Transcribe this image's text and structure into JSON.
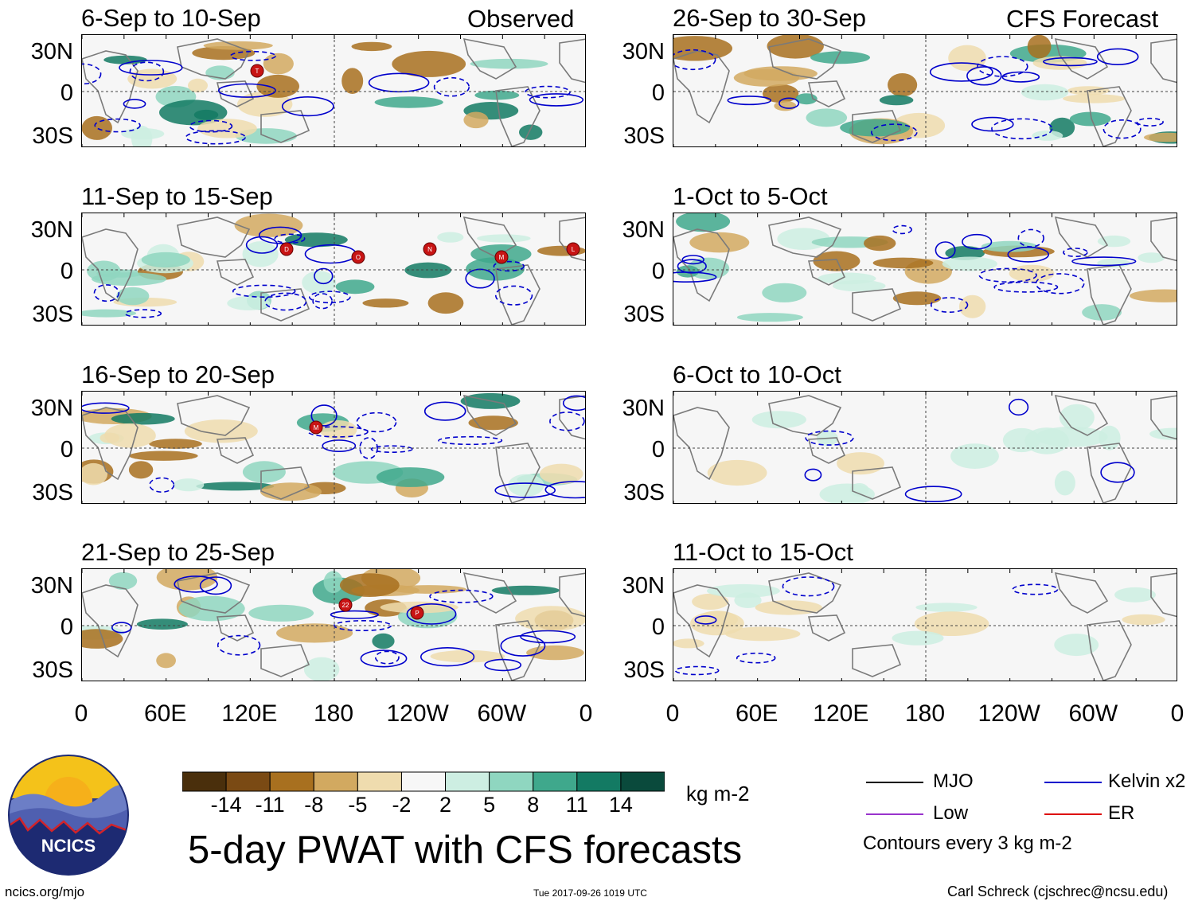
{
  "observed_label": "Observed",
  "forecast_label": "CFS Forecast",
  "panels": [
    {
      "title": "6-Sep to 10-Sep",
      "storms": [
        "T"
      ]
    },
    {
      "title": "11-Sep to 15-Sep",
      "storms": [
        "D",
        "O",
        "N",
        "M",
        "L"
      ]
    },
    {
      "title": "16-Sep to 20-Sep",
      "storms": [
        "M"
      ]
    },
    {
      "title": "21-Sep to 25-Sep",
      "storms": [
        "22",
        "P"
      ]
    },
    {
      "title": "26-Sep to 30-Sep",
      "storms": []
    },
    {
      "title": "1-Oct to 5-Oct",
      "storms": []
    },
    {
      "title": "6-Oct to 10-Oct",
      "storms": []
    },
    {
      "title": "11-Oct to 15-Oct",
      "storms": []
    }
  ],
  "lat_labels": [
    "30N",
    "0",
    "30S"
  ],
  "lon_labels": [
    "0",
    "60E",
    "120E",
    "180",
    "120W",
    "60W",
    "0"
  ],
  "colorbar": {
    "labels": [
      "-14",
      "-11",
      "-8",
      "-5",
      "-2",
      "2",
      "5",
      "8",
      "11",
      "14"
    ],
    "colors": [
      "#4a2f0c",
      "#7a4a14",
      "#a8701f",
      "#d2a960",
      "#efdcae",
      "#f7f7f7",
      "#cdeee2",
      "#8fd6c0",
      "#3fa88c",
      "#137a63",
      "#0a4a3c"
    ],
    "units": "kg m-2"
  },
  "legend": {
    "items": [
      {
        "label": "MJO",
        "color": "#000000"
      },
      {
        "label": "Kelvin x2",
        "color": "#0000cc"
      },
      {
        "label": "Low",
        "color": "#9933cc"
      },
      {
        "label": "ER",
        "color": "#dd0000"
      }
    ],
    "note": "Contours every 3 kg m-2"
  },
  "logo_text": "NCICS",
  "main_title": "5-day PWAT with CFS forecasts",
  "footer": {
    "url": "ncics.org/mjo",
    "timestamp": "Tue 2017-09-26 1019 UTC",
    "author": "Carl Schreck (cjschrec@ncsu.edu)"
  }
}
